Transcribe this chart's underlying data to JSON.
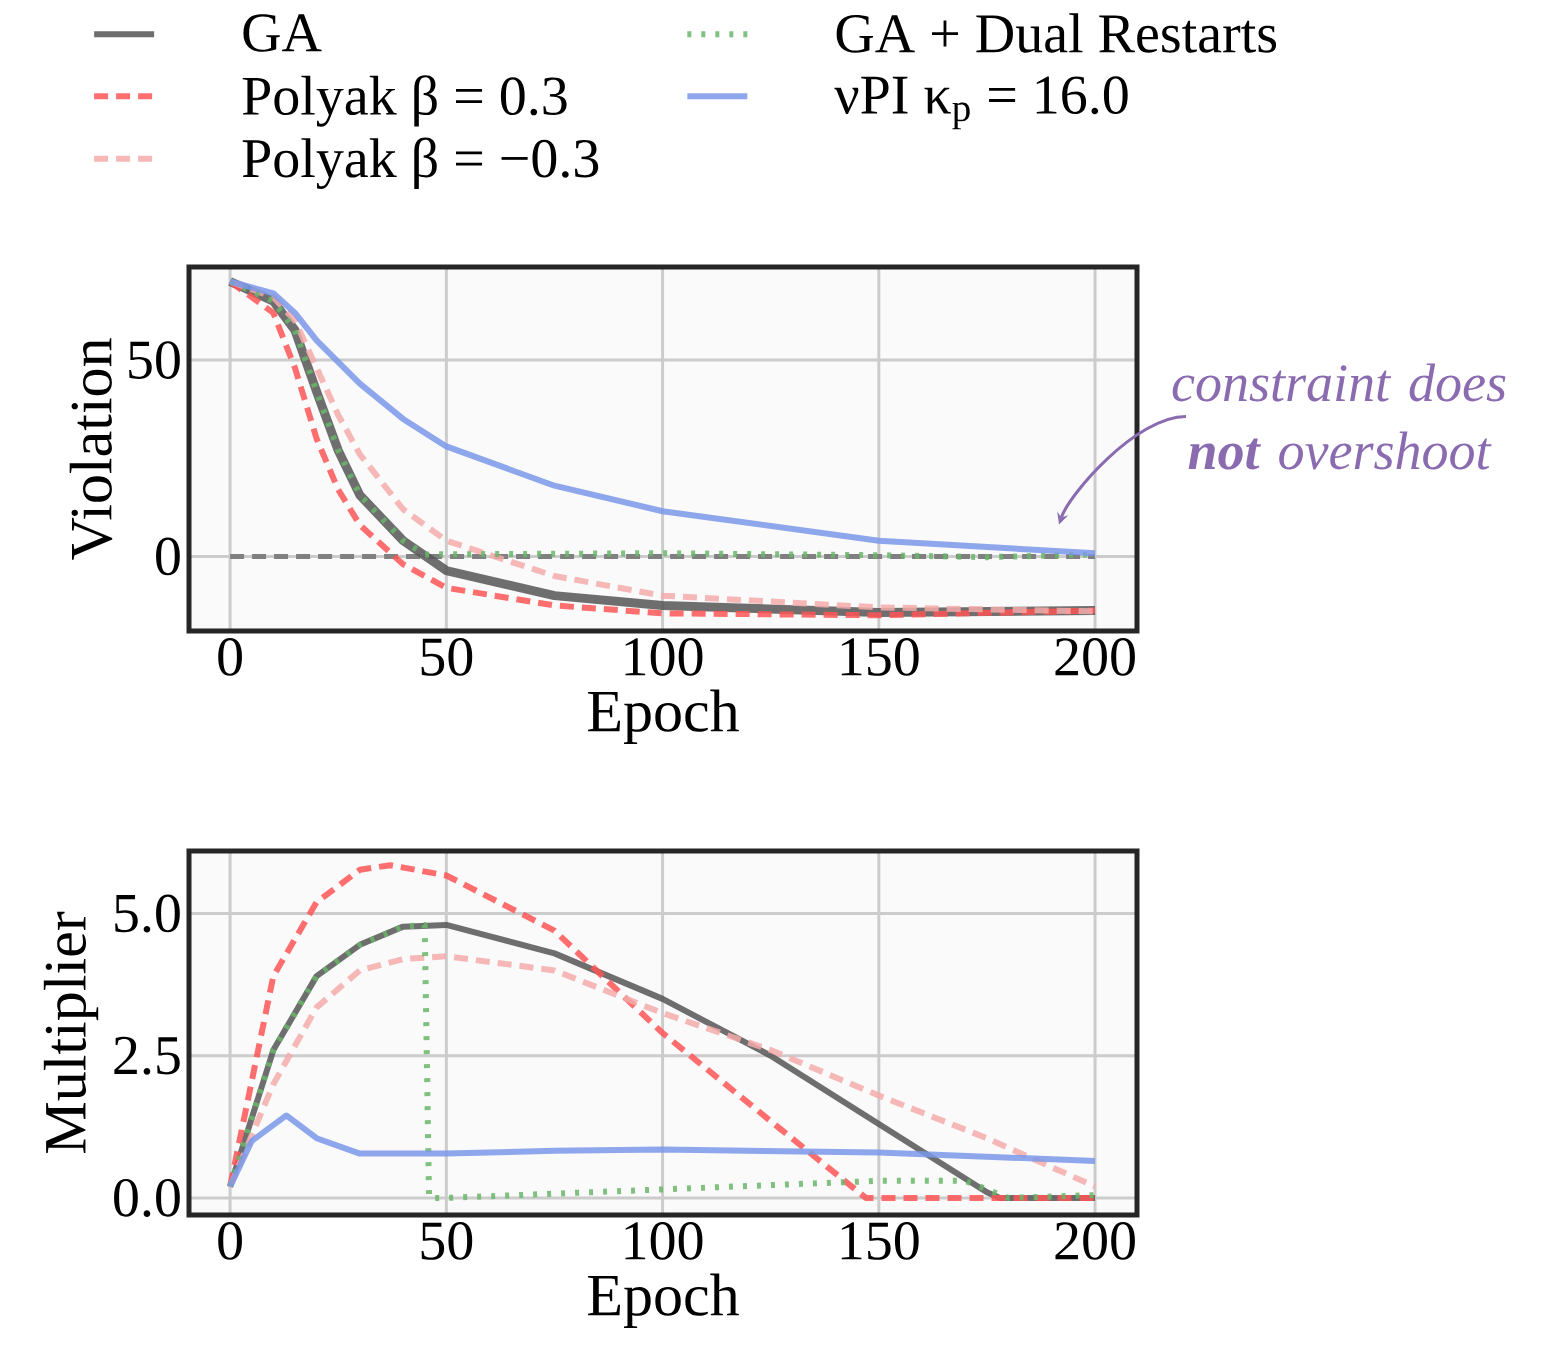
{
  "chart_data": [
    {
      "type": "line",
      "xlabel": "Epoch",
      "ylabel": "Violation",
      "xlim": [
        -9.5,
        209.7
      ],
      "ylim": [
        -19,
        73.7
      ],
      "xticks": [
        0,
        50,
        100,
        150,
        200
      ],
      "yticks": [
        0,
        50
      ],
      "grid": true,
      "legend": "top",
      "ref_lines": [
        {
          "axis": "y",
          "value": 0,
          "color": "#808080",
          "line_style": "dashed"
        }
      ],
      "annotations": [
        {
          "text": "constraint does **not** overshoot",
          "x": 200,
          "y": 1
        }
      ],
      "series": [
        {
          "name": "GA",
          "color": "#555555",
          "line_style": "solid",
          "x": [
            0,
            10,
            15,
            20,
            25,
            30,
            40,
            50,
            75,
            100,
            150,
            200
          ],
          "values": [
            70,
            65,
            57.6,
            42,
            27,
            15.6,
            4,
            -3.6,
            -10,
            -12.5,
            -14.3,
            -13.8
          ]
        },
        {
          "name": "Polyak β = 0.3",
          "color": "#ff5555",
          "line_style": "dashed",
          "x": [
            0,
            10,
            15,
            20,
            25,
            30,
            40,
            50,
            75,
            100,
            150,
            200
          ],
          "values": [
            70,
            62,
            48,
            30,
            17,
            8,
            -2,
            -8,
            -12.5,
            -14.5,
            -15,
            -13.8
          ]
        },
        {
          "name": "Polyak β = −0.3",
          "color": "#f4aaaa",
          "line_style": "dashed",
          "x": [
            0,
            10,
            15,
            20,
            25,
            30,
            40,
            50,
            75,
            100,
            150,
            200
          ],
          "values": [
            70,
            66,
            60,
            48,
            36,
            26,
            12,
            4,
            -5,
            -10,
            -13,
            -14
          ]
        },
        {
          "name": "GA + Dual Restarts",
          "color": "#6ab56a",
          "line_style": "dotted",
          "x": [
            0,
            10,
            15,
            20,
            25,
            30,
            40,
            45,
            100,
            150,
            175,
            200
          ],
          "values": [
            70,
            65,
            57.6,
            42,
            27,
            15.6,
            4,
            0.5,
            0.8,
            0.3,
            -0.2,
            0.5
          ]
        },
        {
          "name": "νPI κ$_{p}$ = 16.0",
          "color": "#7a96e8",
          "line_style": "solid",
          "x": [
            0,
            10,
            15,
            20,
            30,
            40,
            50,
            75,
            100,
            150,
            200
          ],
          "values": [
            70,
            67,
            62,
            55,
            44,
            35,
            28,
            18,
            11.5,
            4,
            0.8
          ]
        }
      ]
    },
    {
      "type": "line",
      "xlabel": "Epoch",
      "ylabel": "Multiplier",
      "xlim": [
        -9.5,
        209.7
      ],
      "ylim": [
        -0.3,
        6.1
      ],
      "xticks": [
        0,
        50,
        100,
        150,
        200
      ],
      "yticks": [
        {
          "value": 0,
          "label": "0.0"
        },
        2.5,
        {
          "value": 5,
          "label": "5.0"
        }
      ],
      "grid": true,
      "series": [
        {
          "color": "#555555",
          "line_style": "solid",
          "x": [
            0,
            10,
            20,
            30,
            40,
            50,
            75,
            100,
            125,
            150,
            175,
            178,
            200
          ],
          "values": [
            0.2,
            2.6,
            3.9,
            4.45,
            4.77,
            4.8,
            4.3,
            3.5,
            2.5,
            1.3,
            0.1,
            0,
            0
          ]
        },
        {
          "color": "#ff5555",
          "line_style": "dashed",
          "x": [
            0,
            10,
            20,
            30,
            37,
            50,
            75,
            100,
            125,
            147,
            200
          ],
          "values": [
            0.2,
            3.9,
            5.2,
            5.77,
            5.85,
            5.67,
            4.7,
            2.9,
            1.35,
            0,
            0
          ]
        },
        {
          "color": "#f4aaaa",
          "line_style": "dashed",
          "x": [
            0,
            10,
            20,
            30,
            40,
            50,
            75,
            100,
            125,
            150,
            175,
            200
          ],
          "values": [
            0.2,
            2.0,
            3.35,
            4.0,
            4.2,
            4.25,
            4.0,
            3.25,
            2.6,
            1.8,
            1.05,
            0.2
          ]
        },
        {
          "color": "#6ab56a",
          "line_style": "dotted",
          "x": [
            0,
            10,
            20,
            30,
            40,
            45,
            46,
            50,
            100,
            150,
            170,
            180,
            200
          ],
          "values": [
            0.2,
            2.6,
            3.9,
            4.45,
            4.77,
            4.8,
            0,
            0,
            0.15,
            0.3,
            0.3,
            0,
            0.05
          ]
        },
        {
          "color": "#7a96e8",
          "line_style": "solid",
          "x": [
            0,
            5,
            13,
            20,
            30,
            50,
            75,
            100,
            150,
            200
          ],
          "values": [
            0.2,
            1.0,
            1.45,
            1.05,
            0.78,
            0.78,
            0.83,
            0.85,
            0.8,
            0.65
          ]
        }
      ]
    }
  ]
}
